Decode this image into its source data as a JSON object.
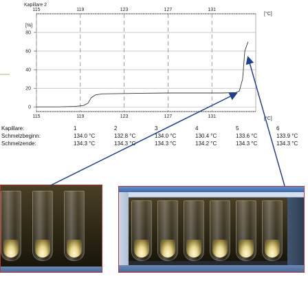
{
  "chart": {
    "title": "Kapillare 2",
    "x_unit": "[°C]",
    "y_unit": "[%]",
    "top_ticks": [
      "115",
      "119",
      "123",
      "127",
      "131"
    ],
    "bottom_ticks": [
      "115",
      "119",
      "123",
      "127",
      "131"
    ],
    "y_ticks": [
      "0",
      "20",
      "40",
      "60",
      "80"
    ]
  },
  "chart_data": {
    "type": "line",
    "title": "Kapillare 2",
    "xlabel": "[°C]",
    "ylabel": "[%]",
    "xlim": [
      115,
      135
    ],
    "ylim": [
      -5,
      100
    ],
    "x_ticks": [
      115,
      119,
      123,
      127,
      131
    ],
    "y_ticks": [
      0,
      20,
      40,
      60,
      80
    ],
    "grid": true,
    "series": [
      {
        "x": [
          115,
          117,
          118.5,
          119.3,
          119.7,
          120.0,
          120.4,
          121,
          124,
          127,
          130,
          132,
          133.2,
          133.5,
          133.8,
          134.0,
          134.3
        ],
        "y": [
          0,
          0,
          0.5,
          1.5,
          4,
          10,
          13,
          14,
          14.5,
          15,
          15,
          15,
          15.5,
          17,
          30,
          60,
          70
        ]
      }
    ]
  },
  "table": {
    "rows": [
      {
        "label": "Kapillare:",
        "values": [
          "1",
          "2",
          "3",
          "4",
          "5",
          "6"
        ]
      },
      {
        "label": "Schmelzbeginn:",
        "values": [
          "134.0 °C",
          "132.8 °C",
          "134.0 °C",
          "130.4 °C",
          "133.6 °C",
          "133.9 °C"
        ]
      },
      {
        "label": "Schmelzende:",
        "values": [
          "134.3 °C",
          "134.3 °C",
          "134.3 °C",
          "134.2 °C",
          "134.3 °C",
          "134.3 °C"
        ]
      }
    ]
  },
  "colors": {
    "arrow": "#1f3f8f",
    "frame": "#b33a3a",
    "accent_line": "#9bc26a"
  },
  "screenshots": {
    "left": {
      "tubes": 3
    },
    "right": {
      "tubes": 6
    }
  }
}
